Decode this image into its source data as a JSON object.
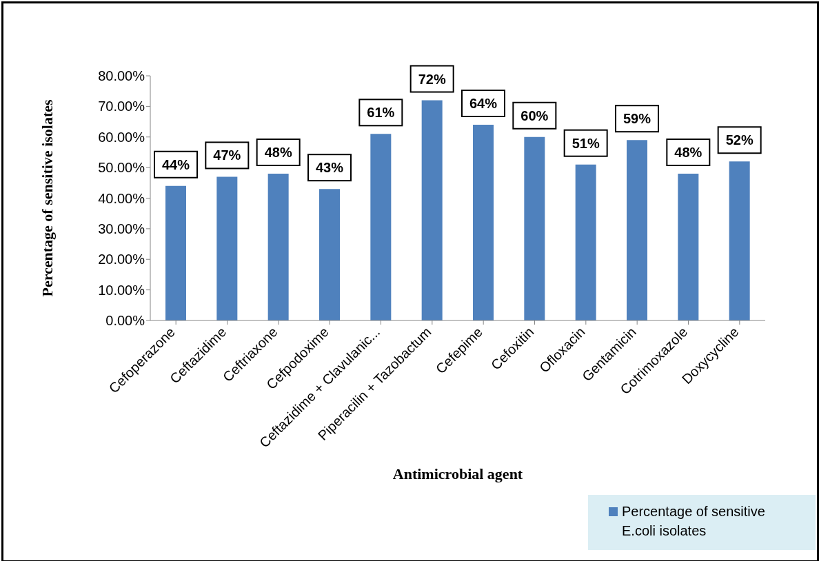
{
  "chart_data": {
    "type": "bar",
    "xlabel": "Antimicrobial agent",
    "ylabel": "Percentage of sensitive isolates",
    "categories": [
      "Cefoperazone",
      "Ceftazidime",
      "Ceftriaxone",
      "Cefpodoxime",
      "Ceftazidime + Clavulanic...",
      "Piperacilin + Tazobactum",
      "Cefepime",
      "Cefoxitin",
      "Ofloxacin",
      "Gentamicin",
      "Cotrimoxazole",
      "Doxycycline"
    ],
    "series": [
      {
        "name": "Percentage of sensitive E.coli isolates",
        "color": "#4f81bd",
        "values": [
          44,
          47,
          48,
          43,
          61,
          72,
          64,
          60,
          51,
          59,
          48,
          52
        ],
        "value_labels": [
          "44%",
          "47%",
          "48%",
          "43%",
          "61%",
          "72%",
          "64%",
          "60%",
          "51%",
          "59%",
          "48%",
          "52%"
        ]
      }
    ],
    "ylim": [
      0,
      80
    ],
    "yticks": [
      {
        "value": 0,
        "label": "0.00%"
      },
      {
        "value": 10,
        "label": "10.00%"
      },
      {
        "value": 20,
        "label": "20.00%"
      },
      {
        "value": 30,
        "label": "30.00%"
      },
      {
        "value": 40,
        "label": "40.00%"
      },
      {
        "value": 50,
        "label": "50.00%"
      },
      {
        "value": 60,
        "label": "60.00%"
      },
      {
        "value": 70,
        "label": "70.00%"
      },
      {
        "value": 80,
        "label": "80.00%"
      }
    ],
    "grid": false,
    "legend": "bottom right"
  }
}
